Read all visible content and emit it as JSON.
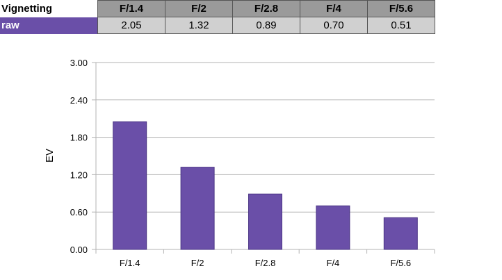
{
  "table": {
    "corner_label": "Vignetting",
    "row_label": "raw",
    "headers": [
      "F/1.4",
      "F/2",
      "F/2.8",
      "F/4",
      "F/5.6"
    ],
    "values": [
      "2.05",
      "1.32",
      "0.89",
      "0.70",
      "0.51"
    ]
  },
  "chart_data": {
    "type": "bar",
    "categories": [
      "F/1.4",
      "F/2",
      "F/2.8",
      "F/4",
      "F/5.6"
    ],
    "values": [
      2.05,
      1.32,
      0.89,
      0.7,
      0.51
    ],
    "ylabel": "EV",
    "xlabel": "",
    "ylim": [
      0,
      3
    ],
    "yticks": [
      "0.00",
      "0.60",
      "1.20",
      "1.80",
      "2.40",
      "3.00"
    ],
    "grid": true,
    "bar_color": "#6a4fa8"
  }
}
